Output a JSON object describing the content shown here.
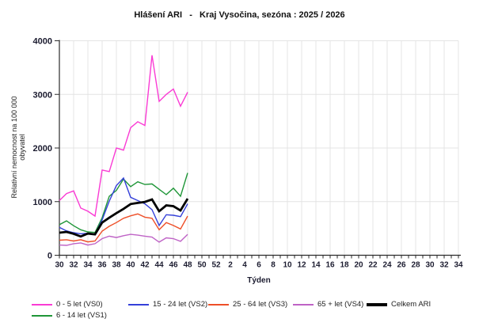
{
  "title": "Hlášení ARI   -   Kraj Vysočina, sezóna : 2025 / 2026",
  "chart_data": {
    "type": "line",
    "title": "Hlášení ARI   -   Kraj Vysočina, sezóna : 2025 / 2026",
    "xlabel": "Týden",
    "ylabel": "Relativní nemocnost na 100 000 obyvatel",
    "ylim": [
      0,
      4000
    ],
    "yticks": [
      0,
      1000,
      2000,
      3000,
      4000
    ],
    "grid": true,
    "legend_position": "bottom",
    "x_axis_week_labels": [
      "30",
      "32",
      "34",
      "36",
      "38",
      "40",
      "42",
      "44",
      "46",
      "48",
      "50",
      "52",
      "2",
      "4",
      "6",
      "8",
      "10",
      "12",
      "14",
      "16",
      "18",
      "20",
      "22",
      "24",
      "26",
      "28",
      "30",
      "32",
      "34"
    ],
    "weeks_per_axis": 57,
    "data_weeks": [
      30,
      31,
      32,
      33,
      34,
      35,
      36,
      37,
      38,
      39,
      40,
      41,
      42,
      43,
      44,
      45,
      46,
      47,
      48
    ],
    "series": [
      {
        "id": "VS0",
        "name": "0 - 5 let (VS0)",
        "color": "#fa3bd4",
        "thick": false,
        "values": [
          1020,
          1150,
          1200,
          880,
          820,
          730,
          1590,
          1560,
          2000,
          1960,
          2380,
          2490,
          2420,
          3730,
          2870,
          3000,
          3100,
          2780,
          3040
        ]
      },
      {
        "id": "VS1",
        "name": "6 - 14 let (VS1)",
        "color": "#1f9638",
        "thick": false,
        "values": [
          570,
          640,
          550,
          475,
          435,
          425,
          700,
          1100,
          1210,
          1420,
          1280,
          1370,
          1320,
          1330,
          1230,
          1130,
          1250,
          1100,
          1535
        ]
      },
      {
        "id": "VS2",
        "name": "15 - 24 let (VS2)",
        "color": "#3440d9",
        "thick": false,
        "values": [
          520,
          455,
          420,
          400,
          410,
          390,
          660,
          1010,
          1300,
          1440,
          1080,
          1020,
          960,
          850,
          555,
          755,
          745,
          720,
          960
        ]
      },
      {
        "id": "VS3",
        "name": "25 - 64 let (VS3)",
        "color": "#ee4f28",
        "thick": false,
        "values": [
          280,
          290,
          265,
          290,
          250,
          265,
          450,
          540,
          610,
          690,
          735,
          770,
          710,
          690,
          475,
          610,
          555,
          490,
          730
        ]
      },
      {
        "id": "VS4",
        "name": "65 + let (VS4)",
        "color": "#bf63c6",
        "thick": false,
        "values": [
          190,
          185,
          215,
          230,
          190,
          215,
          310,
          355,
          330,
          365,
          390,
          375,
          355,
          340,
          245,
          325,
          310,
          260,
          390
        ]
      },
      {
        "id": "TOTAL",
        "name": "Celkem ARI",
        "color": "#000000",
        "thick": true,
        "values": [
          420,
          435,
          400,
          350,
          405,
          390,
          610,
          700,
          785,
          865,
          955,
          975,
          995,
          1040,
          820,
          930,
          915,
          835,
          1055
        ]
      }
    ],
    "colors": {
      "grid": "#e4e4e4",
      "axis": "#2b2b2b",
      "tick_label": "#1c1c30"
    }
  }
}
